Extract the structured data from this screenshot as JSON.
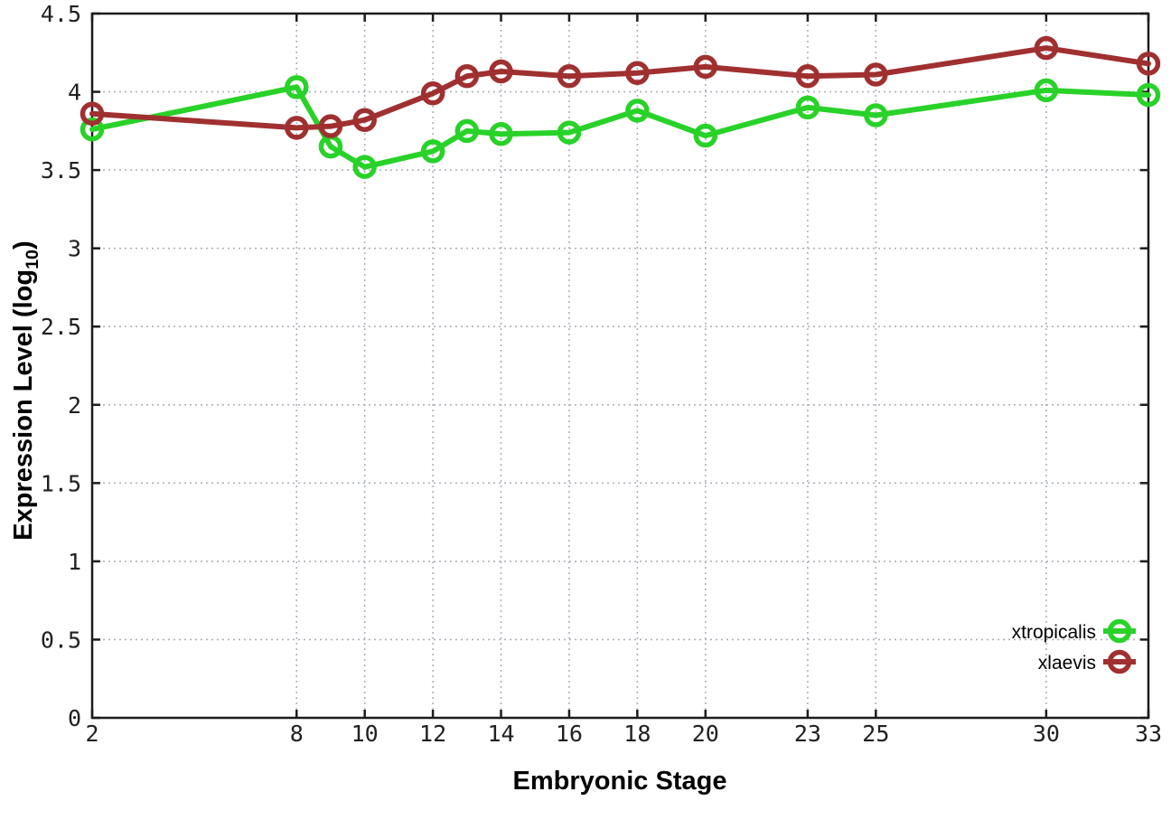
{
  "figure": {
    "xlabel": "Embryonic Stage",
    "ylabel_prefix": "Expression Level (log",
    "ylabel_sub": "10",
    "ylabel_suffix": ")"
  },
  "chart_data": {
    "type": "line",
    "title": "",
    "xlabel": "Embryonic Stage",
    "ylabel": "Expression Level (log10)",
    "xlim": [
      2,
      33
    ],
    "ylim": [
      0,
      4.5
    ],
    "grid": true,
    "legend_position": "inside bottom-right",
    "x_tick_values": [
      2,
      8,
      10,
      12,
      14,
      16,
      18,
      20,
      23,
      25,
      30,
      33
    ],
    "x_tick_labels": [
      "2",
      "8",
      "10",
      "12",
      "14",
      "16",
      "18",
      "20",
      "23",
      "25",
      "30",
      "33"
    ],
    "y_tick_values": [
      0,
      0.5,
      1,
      1.5,
      2,
      2.5,
      3,
      3.5,
      4,
      4.5
    ],
    "y_tick_labels": [
      "0",
      "0.5",
      "1",
      "1.5",
      "2",
      "2.5",
      "3",
      "3.5",
      "4",
      "4.5"
    ],
    "x": [
      2,
      8,
      9,
      10,
      12,
      13,
      14,
      16,
      18,
      20,
      23,
      25,
      30,
      33
    ],
    "series": [
      {
        "name": "xtropicalis",
        "color": "#28D228",
        "values": [
          3.76,
          4.03,
          3.65,
          3.52,
          3.62,
          3.75,
          3.73,
          3.74,
          3.88,
          3.72,
          3.9,
          3.85,
          4.01,
          3.98
        ]
      },
      {
        "name": "xlaevis",
        "color": "#A03030",
        "values": [
          3.86,
          3.77,
          3.78,
          3.82,
          3.99,
          4.1,
          4.13,
          4.1,
          4.12,
          4.16,
          4.1,
          4.11,
          4.28,
          4.18
        ]
      }
    ],
    "marker": "open-circle",
    "line_width": 6,
    "background": "#FFFFFF",
    "grid_color": "#ABB3BD",
    "axis_color": "#1C1C1C",
    "tick_label_color": "#202020",
    "legend_text_color": "#000000"
  }
}
